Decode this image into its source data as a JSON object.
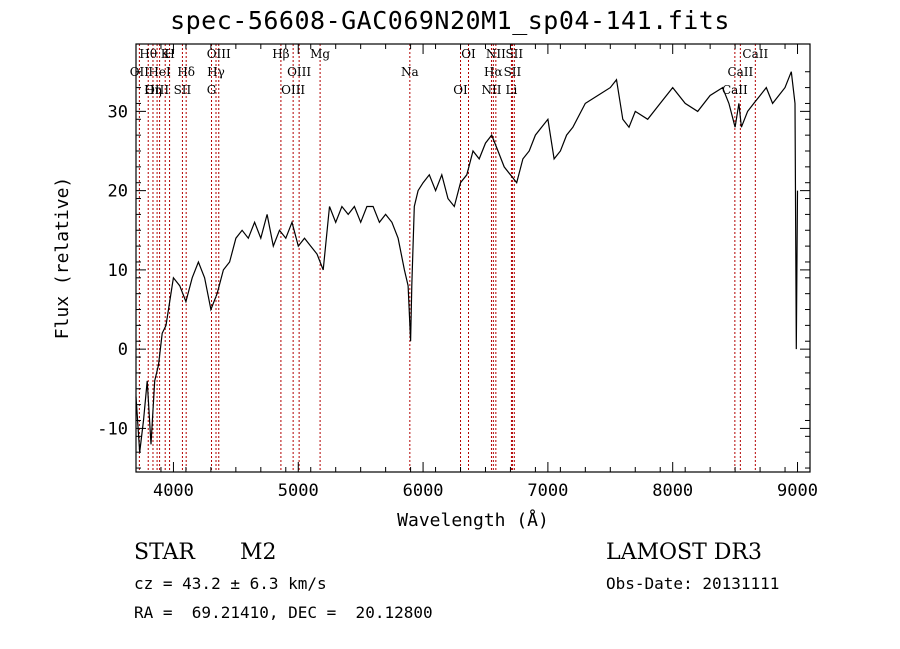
{
  "chart_data": {
    "type": "line",
    "title": "spec-56608-GAC069N20M1_sp04-141.fits",
    "xlabel": "Wavelength (Å)",
    "ylabel": "Flux (relative)",
    "xlim": [
      3700,
      9100
    ],
    "ylim": [
      -15.5,
      38.5
    ],
    "xticks": [
      4000,
      5000,
      6000,
      7000,
      8000,
      9000
    ],
    "yticks": [
      -10,
      0,
      10,
      20,
      30
    ],
    "grid": false,
    "series": [
      {
        "name": "flux",
        "x": [
          3700,
          3730,
          3760,
          3790,
          3820,
          3850,
          3880,
          3910,
          3940,
          3970,
          4000,
          4050,
          4100,
          4150,
          4200,
          4250,
          4300,
          4350,
          4400,
          4450,
          4500,
          4550,
          4600,
          4650,
          4700,
          4750,
          4800,
          4850,
          4900,
          4950,
          5000,
          5050,
          5100,
          5150,
          5200,
          5250,
          5300,
          5350,
          5400,
          5450,
          5500,
          5550,
          5600,
          5650,
          5700,
          5750,
          5800,
          5850,
          5880,
          5900,
          5910,
          5930,
          5960,
          6000,
          6050,
          6100,
          6150,
          6200,
          6250,
          6300,
          6350,
          6400,
          6450,
          6500,
          6550,
          6600,
          6650,
          6700,
          6750,
          6800,
          6850,
          6900,
          6950,
          7000,
          7050,
          7100,
          7150,
          7200,
          7300,
          7400,
          7500,
          7550,
          7600,
          7650,
          7700,
          7800,
          7900,
          8000,
          8100,
          8200,
          8300,
          8400,
          8450,
          8500,
          8530,
          8550,
          8600,
          8650,
          8700,
          8750,
          8800,
          8850,
          8900,
          8950,
          8980,
          8990,
          9000
        ],
        "y": [
          -6,
          -13,
          -9,
          -4,
          -12,
          -4,
          -2,
          2,
          3,
          6,
          9,
          8,
          6,
          9,
          11,
          9,
          5,
          7,
          10,
          11,
          14,
          15,
          14,
          16,
          14,
          17,
          13,
          15,
          14,
          16,
          13,
          14,
          13,
          12,
          10,
          18,
          16,
          18,
          17,
          18,
          16,
          18,
          18,
          16,
          17,
          16,
          14,
          10,
          8,
          1,
          8,
          18,
          20,
          21,
          22,
          20,
          22,
          19,
          18,
          21,
          22,
          25,
          24,
          26,
          27,
          25,
          23,
          22,
          21,
          24,
          25,
          27,
          28,
          29,
          24,
          25,
          27,
          28,
          31,
          32,
          33,
          34,
          29,
          28,
          30,
          29,
          31,
          33,
          31,
          30,
          32,
          33,
          31,
          28,
          31,
          28,
          30,
          31,
          32,
          33,
          31,
          32,
          33,
          35,
          31,
          0,
          20
        ]
      }
    ],
    "line_markers": [
      {
        "label": "Hθ",
        "x": 3798
      },
      {
        "label": "OII",
        "x": 3727
      },
      {
        "label": "OIII",
        "x": 3869
      },
      {
        "label": "K",
        "x": 3934
      },
      {
        "label": "HeI",
        "x": 3889
      },
      {
        "label": "Hη",
        "x": 3836
      },
      {
        "label": "H",
        "x": 3969
      },
      {
        "label": "Hδ",
        "x": 4102
      },
      {
        "label": "SII",
        "x": 4072
      },
      {
        "label": "OIII",
        "x": 4363
      },
      {
        "label": "Hγ",
        "x": 4341
      },
      {
        "label": "G",
        "x": 4305
      },
      {
        "label": "Hβ",
        "x": 4861
      },
      {
        "label": "OIII",
        "x": 5007
      },
      {
        "label": "OIII",
        "x": 4959
      },
      {
        "label": "Mg",
        "x": 5175
      },
      {
        "label": "Na",
        "x": 5894
      },
      {
        "label": "OI",
        "x": 6300
      },
      {
        "label": "OI",
        "x": 6364
      },
      {
        "label": "Hα",
        "x": 6563
      },
      {
        "label": "NII",
        "x": 6548
      },
      {
        "label": "NII",
        "x": 6583
      },
      {
        "label": "SII",
        "x": 6716
      },
      {
        "label": "Li",
        "x": 6708
      },
      {
        "label": "SII",
        "x": 6731
      },
      {
        "label": "CaII",
        "x": 8542
      },
      {
        "label": "CaII",
        "x": 8498
      },
      {
        "label": "CaII",
        "x": 8662
      }
    ]
  },
  "info": {
    "object_class": "STAR",
    "subclass": "M2",
    "survey": "LAMOST DR3",
    "cz": "cz = 43.2 ± 6.3 km/s",
    "obs_date": "Obs-Date: 20131111",
    "coords": "RA =  69.21410, DEC =  20.12800"
  },
  "colors": {
    "spectrum": "#000000",
    "marker": "#b30000",
    "axes": "#000000"
  },
  "icons": []
}
